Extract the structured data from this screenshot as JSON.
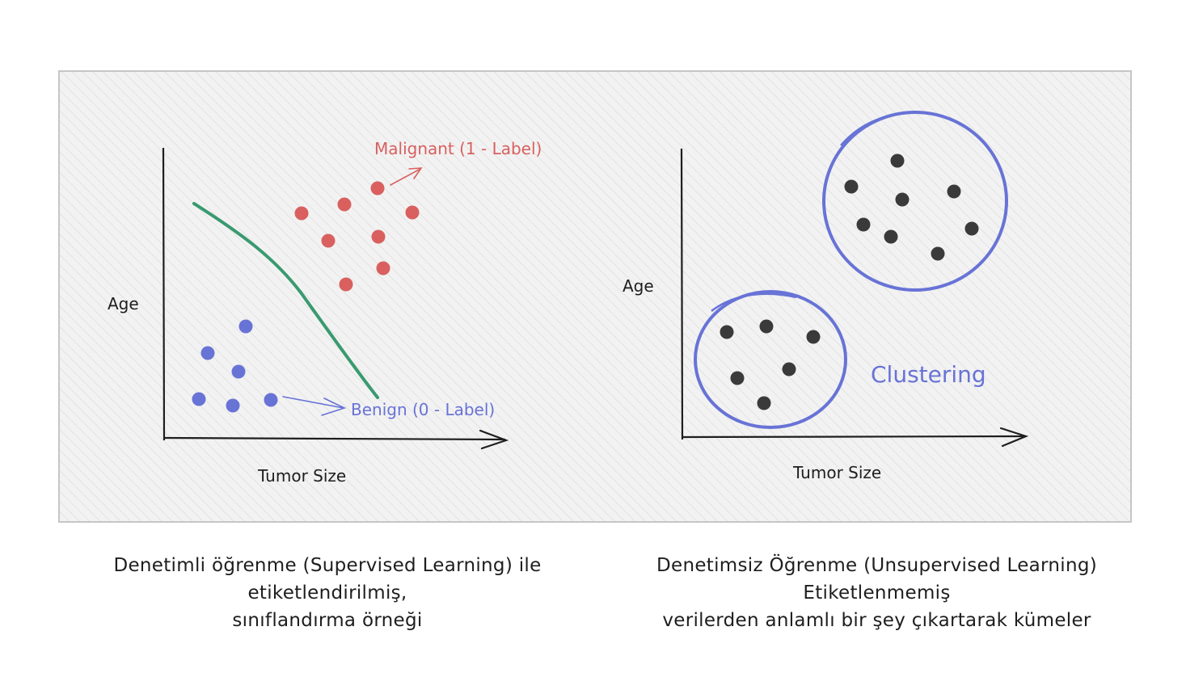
{
  "supervised": {
    "y_label": "Age",
    "x_label": "Tumor Size",
    "malignant_label": "Malignant (1 - Label)",
    "benign_label": "Benign (0 - Label)",
    "malignant_points": [
      [
        373,
        264
      ],
      [
        426,
        253
      ],
      [
        467,
        233
      ],
      [
        510,
        263
      ],
      [
        406,
        298
      ],
      [
        468,
        293
      ],
      [
        474,
        332
      ],
      [
        428,
        352
      ]
    ],
    "benign_points": [
      [
        304,
        404
      ],
      [
        257,
        437
      ],
      [
        295,
        460
      ],
      [
        246,
        494
      ],
      [
        288,
        502
      ],
      [
        335,
        495
      ]
    ],
    "caption": [
      "Denetimli öğrenme (Supervised Learning) ile",
      "etiketlendirilmiş,",
      "sınıflandırma örneği"
    ]
  },
  "unsupervised": {
    "y_label": "Age",
    "x_label": "Tumor Size",
    "cluster_label": "Clustering",
    "cluster_a_points": [
      [
        1110,
        199
      ],
      [
        1053,
        231
      ],
      [
        1116,
        247
      ],
      [
        1180,
        237
      ],
      [
        1068,
        278
      ],
      [
        1102,
        293
      ],
      [
        1202,
        283
      ],
      [
        1160,
        314
      ]
    ],
    "cluster_b_points": [
      [
        899,
        411
      ],
      [
        948,
        404
      ],
      [
        1006,
        417
      ],
      [
        976,
        457
      ],
      [
        912,
        468
      ],
      [
        945,
        499
      ]
    ],
    "caption": [
      "Denetimsiz Öğrenme (Unsupervised Learning)",
      "Etiketlenmemiş",
      "verilerden anlamlı bir şey çıkartarak kümeler"
    ]
  },
  "colors": {
    "red": "#d9605f",
    "blue": "#6873d6",
    "green": "#3a9a70",
    "ink": "#1e1e1e",
    "panel": "#f0f0f0"
  }
}
